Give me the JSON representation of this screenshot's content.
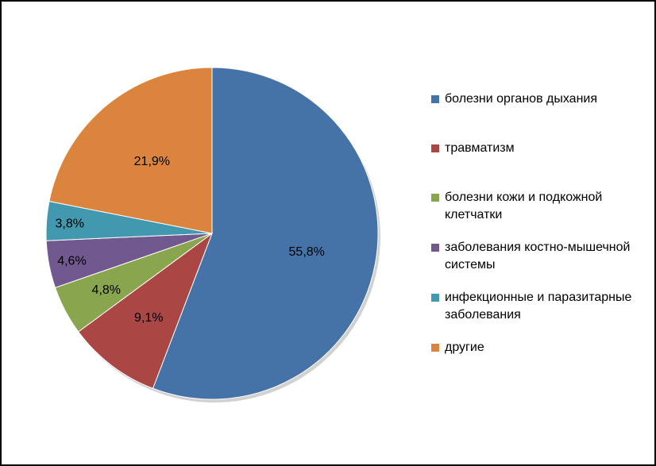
{
  "chart_data": {
    "type": "pie",
    "title": "",
    "slices": [
      {
        "label": "болезни органов дыхания",
        "value": 55.8,
        "display": "55,8%",
        "color": "#4572A7"
      },
      {
        "label": "травматизм",
        "value": 9.1,
        "display": "9,1%",
        "color": "#AA4643"
      },
      {
        "label": "болезни кожи и подкожной клетчатки",
        "value": 4.8,
        "display": "4,8%",
        "color": "#89A54E"
      },
      {
        "label": "заболевания костно-мышечной системы",
        "value": 4.6,
        "display": "4,6%",
        "color": "#71588F"
      },
      {
        "label": "инфекционные и паразитарные заболевания",
        "value": 3.8,
        "display": "3,8%",
        "color": "#4198AF"
      },
      {
        "label": "другие",
        "value": 21.9,
        "display": "21,9%",
        "color": "#DB843D"
      }
    ],
    "legend_position": "right"
  }
}
